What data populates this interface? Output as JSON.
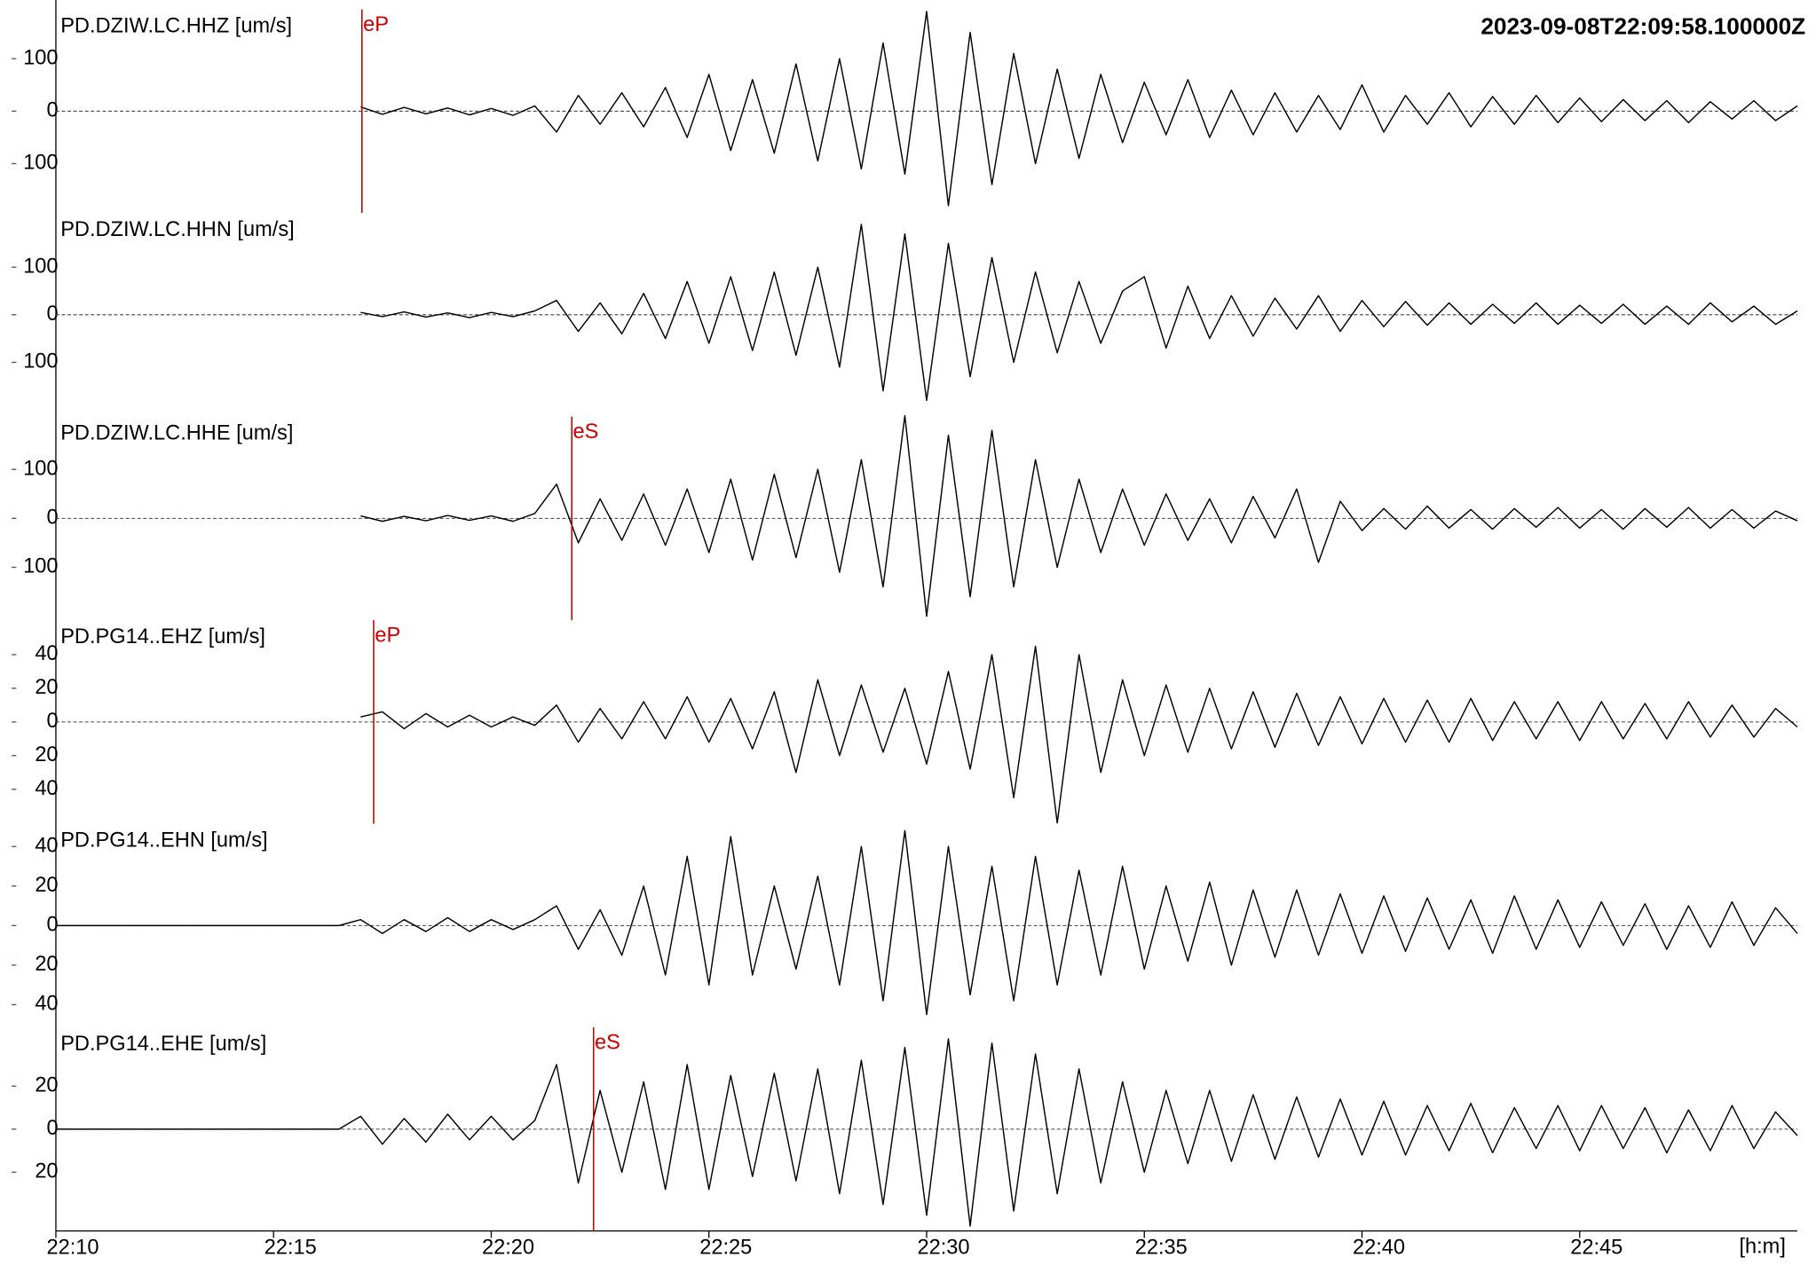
{
  "chart_data": {
    "type": "line",
    "title": "2023-09-08T22:09:58.100000Z",
    "x_label": "[h:m]",
    "xlim": [
      1330,
      1370
    ],
    "xticks": [
      {
        "value": 1330,
        "label": "22:10"
      },
      {
        "value": 1335,
        "label": "22:15"
      },
      {
        "value": 1340,
        "label": "22:20"
      },
      {
        "value": 1345,
        "label": "22:25"
      },
      {
        "value": 1350,
        "label": "22:30"
      },
      {
        "value": 1355,
        "label": "22:35"
      },
      {
        "value": 1360,
        "label": "22:40"
      },
      {
        "value": 1365,
        "label": "22:45"
      }
    ],
    "color": "#000000",
    "pick_color": "#cc0000",
    "x": [
      1330,
      1330.5,
      1331,
      1331.5,
      1332,
      1332.5,
      1333,
      1333.5,
      1334,
      1334.5,
      1335,
      1335.5,
      1336,
      1336.5,
      1337,
      1337.5,
      1338,
      1338.5,
      1339,
      1339.5,
      1340,
      1340.5,
      1341,
      1341.5,
      1342,
      1342.5,
      1343,
      1343.5,
      1344,
      1344.5,
      1345,
      1345.5,
      1346,
      1346.5,
      1347,
      1347.5,
      1348,
      1348.5,
      1349,
      1349.5,
      1350,
      1350.5,
      1351,
      1351.5,
      1352,
      1352.5,
      1353,
      1353.5,
      1354,
      1354.5,
      1355,
      1355.5,
      1356,
      1356.5,
      1357,
      1357.5,
      1358,
      1358.5,
      1359,
      1359.5,
      1360,
      1360.5,
      1361,
      1361.5,
      1362,
      1362.5,
      1363,
      1363.5,
      1364,
      1364.5,
      1365,
      1365.5,
      1366,
      1366.5,
      1367,
      1367.5,
      1368,
      1368.5,
      1369,
      1369.5,
      1370
    ],
    "panels": [
      {
        "label": "PD.DZIW.LC.HHZ [um/s]",
        "ylim": [
          -194,
          194
        ],
        "yticks": [
          {
            "value": -100,
            "label": "100"
          },
          0,
          100
        ],
        "pick": {
          "label": "eP",
          "x": 1337.03
        },
        "values": [
          null,
          null,
          null,
          null,
          null,
          null,
          null,
          null,
          null,
          null,
          null,
          null,
          null,
          null,
          8,
          -6,
          7,
          -5,
          6,
          -7,
          5,
          -8,
          10,
          -40,
          30,
          -25,
          35,
          -30,
          45,
          -50,
          70,
          -75,
          60,
          -80,
          90,
          -95,
          100,
          -110,
          130,
          -120,
          190,
          -180,
          150,
          -140,
          110,
          -100,
          80,
          -90,
          70,
          -60,
          55,
          -45,
          60,
          -50,
          40,
          -45,
          35,
          -40,
          30,
          -35,
          50,
          -40,
          30,
          -25,
          35,
          -30,
          28,
          -25,
          30,
          -22,
          25,
          -20,
          22,
          -18,
          20,
          -22,
          18,
          -15,
          20,
          -18,
          10
        ]
      },
      {
        "label": "PD.DZIW.LC.HHN [um/s]",
        "ylim": [
          -214,
          214
        ],
        "yticks": [
          {
            "value": -100,
            "label": "100"
          },
          0,
          100
        ],
        "values": [
          null,
          null,
          null,
          null,
          null,
          null,
          null,
          null,
          null,
          null,
          null,
          null,
          null,
          null,
          5,
          -4,
          6,
          -5,
          4,
          -6,
          5,
          -4,
          8,
          30,
          -35,
          25,
          -40,
          45,
          -50,
          70,
          -60,
          80,
          -75,
          90,
          -85,
          100,
          -110,
          190,
          -160,
          170,
          -180,
          150,
          -130,
          120,
          -100,
          90,
          -80,
          70,
          -60,
          50,
          80,
          -70,
          60,
          -50,
          40,
          -45,
          35,
          -30,
          40,
          -35,
          30,
          -25,
          28,
          -22,
          25,
          -20,
          22,
          -18,
          25,
          -20,
          20,
          -18,
          22,
          -20,
          18,
          -20,
          25,
          -15,
          18,
          -20,
          8
        ]
      },
      {
        "label": "PD.DZIW.LC.HHE [um/s]",
        "ylim": [
          -208,
          208
        ],
        "yticks": [
          {
            "value": -100,
            "label": "100"
          },
          0,
          100
        ],
        "pick": {
          "label": "eS",
          "x": 1341.85
        },
        "values": [
          null,
          null,
          null,
          null,
          null,
          null,
          null,
          null,
          null,
          null,
          null,
          null,
          null,
          null,
          5,
          -6,
          4,
          -5,
          6,
          -4,
          5,
          -6,
          10,
          70,
          -50,
          40,
          -45,
          50,
          -55,
          60,
          -70,
          80,
          -85,
          90,
          -80,
          100,
          -110,
          120,
          -140,
          210,
          -200,
          170,
          -160,
          180,
          -140,
          120,
          -100,
          80,
          -70,
          60,
          -55,
          50,
          -45,
          40,
          -50,
          45,
          -40,
          60,
          -90,
          35,
          -25,
          20,
          -22,
          25,
          -20,
          18,
          -22,
          20,
          -18,
          22,
          -20,
          18,
          -22,
          20,
          -18,
          22,
          -20,
          18,
          -20,
          15,
          -5
        ]
      },
      {
        "label": "PD.PG14..EHZ [um/s]",
        "ylim": [
          -60.5,
          60.5
        ],
        "yticks": [
          {
            "value": -40,
            "label": "40"
          },
          {
            "value": -20,
            "label": "20"
          },
          0,
          20,
          40
        ],
        "pick": {
          "label": "eP",
          "x": 1337.3
        },
        "values": [
          null,
          null,
          null,
          null,
          null,
          null,
          null,
          null,
          null,
          null,
          null,
          null,
          null,
          null,
          3,
          6,
          -4,
          5,
          -3,
          4,
          -3,
          3,
          -2,
          10,
          -12,
          8,
          -10,
          12,
          -10,
          15,
          -12,
          14,
          -16,
          18,
          -30,
          25,
          -20,
          22,
          -18,
          20,
          -25,
          30,
          -28,
          40,
          -45,
          45,
          -60,
          40,
          -30,
          25,
          -20,
          22,
          -18,
          20,
          -16,
          18,
          -15,
          17,
          -14,
          15,
          -13,
          14,
          -12,
          13,
          -12,
          14,
          -11,
          12,
          -10,
          12,
          -11,
          12,
          -10,
          11,
          -10,
          12,
          -9,
          10,
          -9,
          8,
          -3
        ]
      },
      {
        "label": "PD.PG14..EHN [um/s]",
        "ylim": [
          -51.5,
          51.5
        ],
        "yticks": [
          {
            "value": -40,
            "label": "40"
          },
          {
            "value": -20,
            "label": "20"
          },
          0,
          20,
          40
        ],
        "values": [
          0,
          0,
          0,
          0,
          0,
          0,
          0,
          0,
          0,
          0,
          0,
          0,
          0,
          0,
          3,
          -4,
          3,
          -3,
          4,
          -3,
          3,
          -2,
          3,
          10,
          -12,
          8,
          -15,
          20,
          -25,
          35,
          -30,
          45,
          -25,
          20,
          -22,
          25,
          -30,
          40,
          -38,
          48,
          -45,
          40,
          -35,
          30,
          -38,
          35,
          -30,
          28,
          -25,
          30,
          -22,
          20,
          -18,
          22,
          -20,
          18,
          -16,
          18,
          -15,
          16,
          -14,
          15,
          -13,
          14,
          -12,
          13,
          -14,
          15,
          -12,
          13,
          -11,
          12,
          -10,
          11,
          -12,
          10,
          -11,
          12,
          -10,
          9,
          -4
        ]
      },
      {
        "label": "PD.PG14..EHE [um/s]",
        "ylim": [
          -47.3,
          47.3
        ],
        "yticks": [
          {
            "value": -20,
            "label": "20"
          },
          0,
          20
        ],
        "pick": {
          "label": "eS",
          "x": 1342.35
        },
        "values": [
          0,
          0,
          0,
          0,
          0,
          0,
          0,
          0,
          0,
          0,
          0,
          0,
          0,
          0,
          6,
          -7,
          5,
          -6,
          7,
          -5,
          6,
          -5,
          4,
          30,
          -25,
          18,
          -20,
          22,
          -28,
          30,
          -28,
          25,
          -22,
          26,
          -24,
          28,
          -30,
          32,
          -35,
          38,
          -40,
          42,
          -45,
          40,
          -38,
          35,
          -30,
          28,
          -25,
          22,
          -20,
          18,
          -16,
          18,
          -15,
          16,
          -14,
          15,
          -13,
          14,
          -12,
          13,
          -12,
          11,
          -10,
          12,
          -11,
          10,
          -9,
          11,
          -10,
          11,
          -9,
          10,
          -11,
          9,
          -10,
          11,
          -9,
          8,
          -3
        ]
      }
    ]
  }
}
